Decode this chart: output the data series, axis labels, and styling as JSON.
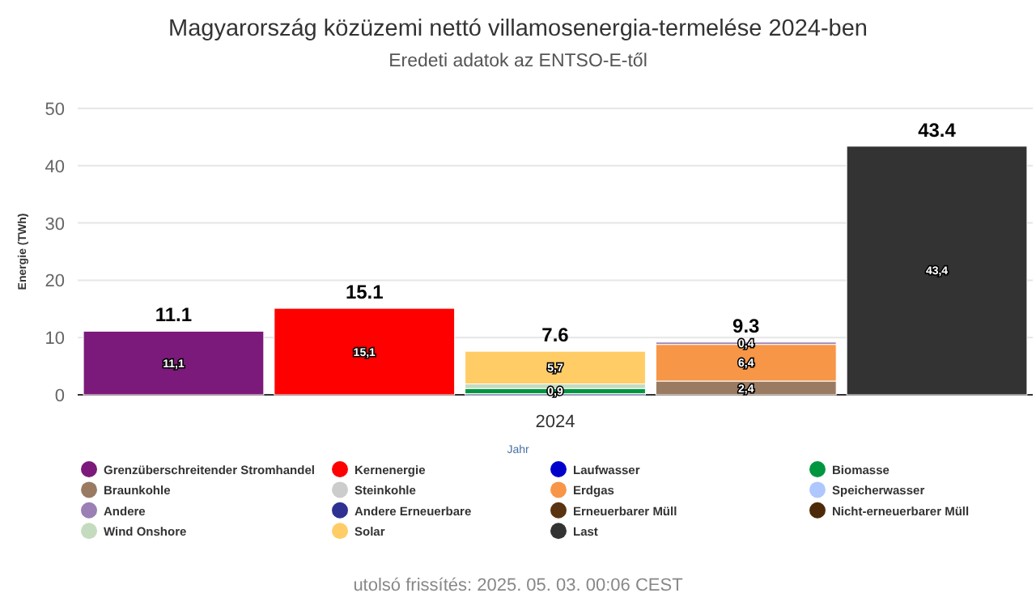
{
  "chart_data": {
    "type": "bar",
    "stacked": true,
    "title": "Magyarország közüzemi nettó villamosenergia-termelése 2024-ben",
    "subtitle": "Eredeti adatok az ENTSO-E-től",
    "xlabel": "Jahr",
    "ylabel": "Energie (TWh)",
    "categories": [
      null,
      null,
      "2024",
      null,
      null
    ],
    "ylim": [
      0,
      50
    ],
    "yticks": [
      0,
      10,
      20,
      30,
      40,
      50
    ],
    "grid": "y",
    "legend": "bottom",
    "totals": [
      "11.1",
      "15.1",
      "7.6",
      "9.3",
      "43.4"
    ],
    "series": [
      {
        "name": "Grenzüberschreitender Stromhandel",
        "color": "#7b1a7b",
        "values": [
          11.1,
          null,
          null,
          null,
          null
        ],
        "value_labels": [
          "11,1",
          null,
          null,
          null,
          null
        ]
      },
      {
        "name": "Kernenergie",
        "color": "#ff0000",
        "values": [
          null,
          15.1,
          null,
          null,
          null
        ],
        "value_labels": [
          null,
          "15,1",
          null,
          null,
          null
        ]
      },
      {
        "name": "Laufwasser",
        "color": "#0000cc",
        "values": [
          null,
          null,
          0.2,
          null,
          null
        ]
      },
      {
        "name": "Biomasse",
        "color": "#00963f",
        "values": [
          null,
          null,
          0.9,
          null,
          null
        ],
        "value_labels": [
          null,
          null,
          "0,9",
          null,
          null
        ]
      },
      {
        "name": "Braunkohle",
        "color": "#9a7b62",
        "values": [
          null,
          null,
          null,
          2.4,
          null
        ],
        "value_labels": [
          null,
          null,
          null,
          "2,4",
          null
        ]
      },
      {
        "name": "Steinkohle",
        "color": "#cccccc",
        "values": [
          null,
          null,
          null,
          null,
          null
        ]
      },
      {
        "name": "Erdgas",
        "color": "#f79646",
        "values": [
          null,
          null,
          null,
          6.4,
          null
        ],
        "value_labels": [
          null,
          null,
          null,
          "6,4",
          null
        ]
      },
      {
        "name": "Speicherwasser",
        "color": "#aec7ff",
        "values": [
          null,
          null,
          null,
          null,
          null
        ]
      },
      {
        "name": "Andere",
        "color": "#9b7fb5",
        "values": [
          null,
          null,
          null,
          0.4,
          null
        ],
        "value_labels": [
          null,
          null,
          null,
          "0,4",
          null
        ]
      },
      {
        "name": "Andere Erneuerbare",
        "color": "#2e3192",
        "values": [
          null,
          null,
          null,
          null,
          null
        ]
      },
      {
        "name": "Erneuerbarer Müll",
        "color": "#5a3310",
        "values": [
          null,
          null,
          null,
          null,
          null
        ]
      },
      {
        "name": "Nicht-erneuerbarer Müll",
        "color": "#4d2a0a",
        "values": [
          null,
          null,
          null,
          null,
          null
        ]
      },
      {
        "name": "Wind Onshore",
        "color": "#c5dbbf",
        "values": [
          null,
          null,
          0.8,
          null,
          null
        ]
      },
      {
        "name": "Solar",
        "color": "#ffcc66",
        "values": [
          null,
          null,
          5.7,
          null,
          null
        ],
        "value_labels": [
          null,
          null,
          "5,7",
          null,
          null
        ]
      },
      {
        "name": "Last",
        "color": "#333333",
        "values": [
          null,
          null,
          null,
          null,
          43.4
        ],
        "value_labels": [
          null,
          null,
          null,
          null,
          "43,4"
        ]
      }
    ],
    "annotations": [
      "utolsó frissítés: 2025. 05. 03. 00:06 CEST"
    ]
  }
}
